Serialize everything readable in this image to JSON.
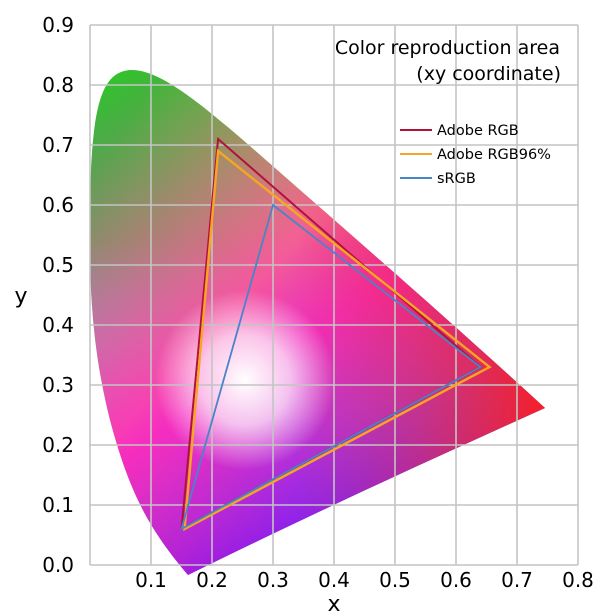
{
  "chart_data": {
    "type": "line",
    "title_lines": [
      "Color reproduction area",
      "(xy coordinate)"
    ],
    "xlabel": "x",
    "ylabel": "y",
    "xlim": [
      0,
      0.8
    ],
    "ylim": [
      0,
      0.9
    ],
    "x_ticks": [
      "0.1",
      "0.2",
      "0.3",
      "0.4",
      "0.5",
      "0.6",
      "0.7",
      "0.8"
    ],
    "y_ticks": [
      "0.0",
      "0.1",
      "0.2",
      "0.3",
      "0.4",
      "0.5",
      "0.6",
      "0.7",
      "0.8",
      "0.9"
    ],
    "grid": true,
    "legend_position": "top-right",
    "series": [
      {
        "name": "Adobe RGB",
        "color": "#b2123a",
        "points": [
          [
            0.21,
            0.71
          ],
          [
            0.64,
            0.33
          ],
          [
            0.15,
            0.06
          ]
        ]
      },
      {
        "name": "Adobe RGB96%",
        "color": "#f6a623",
        "points": [
          [
            0.21,
            0.69
          ],
          [
            0.655,
            0.33
          ],
          [
            0.155,
            0.06
          ]
        ]
      },
      {
        "name": "sRGB",
        "color": "#4a84c8",
        "points": [
          [
            0.3,
            0.6
          ],
          [
            0.64,
            0.33
          ],
          [
            0.15,
            0.06
          ]
        ]
      }
    ]
  }
}
